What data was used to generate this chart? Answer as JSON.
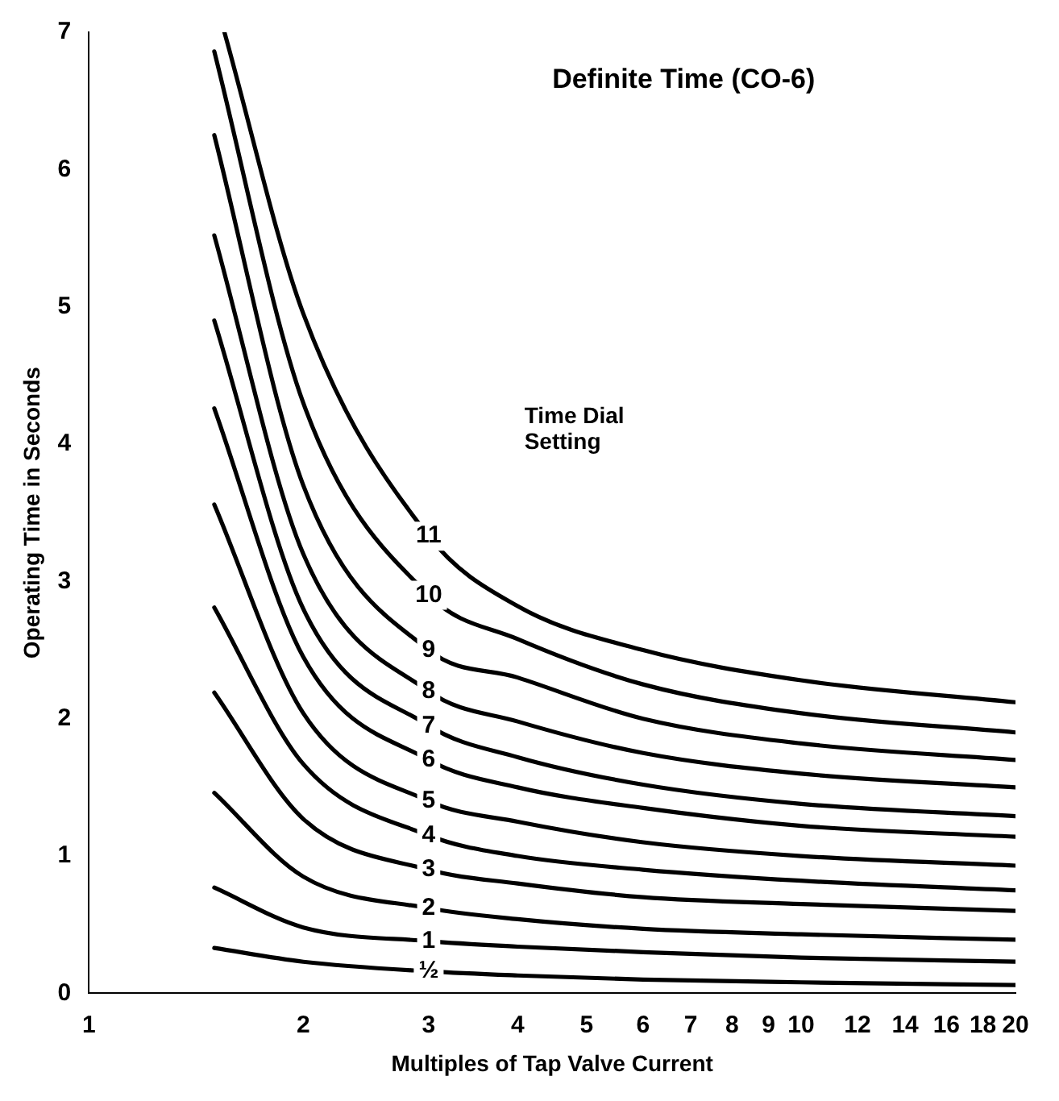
{
  "chart_data": {
    "type": "line",
    "title": "Definite Time (CO-6)",
    "xlabel": "Multiples of Tap Valve Current",
    "ylabel": "Operating Time in Seconds",
    "annotations": [
      "Time Dial Setting"
    ],
    "log": "x",
    "xlim": [
      1,
      20
    ],
    "xticks": [
      1,
      2,
      3,
      4,
      5,
      6,
      7,
      8,
      9,
      10,
      12,
      14,
      16,
      18,
      20
    ],
    "ylim": [
      0,
      7
    ],
    "yticks": [
      0,
      1,
      2,
      3,
      4,
      5,
      6,
      7
    ],
    "grid": false,
    "legend": false,
    "marker": "none",
    "line_style": "solid",
    "series": [
      {
        "name": "½",
        "color": "#000000",
        "x": [
          1.5,
          2,
          3,
          4,
          6,
          10,
          20
        ],
        "values": [
          0.33,
          0.23,
          0.16,
          0.13,
          0.1,
          0.08,
          0.06
        ]
      },
      {
        "name": "1",
        "color": "#000000",
        "x": [
          1.5,
          2,
          3,
          4,
          6,
          10,
          20
        ],
        "values": [
          0.77,
          0.48,
          0.38,
          0.34,
          0.3,
          0.26,
          0.23
        ]
      },
      {
        "name": "2",
        "color": "#000000",
        "x": [
          1.5,
          2,
          3,
          4,
          6,
          10,
          20
        ],
        "values": [
          1.46,
          0.85,
          0.62,
          0.54,
          0.47,
          0.43,
          0.39
        ]
      },
      {
        "name": "3",
        "color": "#000000",
        "x": [
          1.5,
          2,
          3,
          4,
          6,
          10,
          20
        ],
        "values": [
          2.19,
          1.27,
          0.9,
          0.8,
          0.7,
          0.65,
          0.6
        ]
      },
      {
        "name": "4",
        "color": "#000000",
        "x": [
          1.5,
          2,
          3,
          4,
          6,
          10,
          20
        ],
        "values": [
          2.81,
          1.67,
          1.15,
          1.0,
          0.9,
          0.82,
          0.75
        ]
      },
      {
        "name": "5",
        "color": "#000000",
        "x": [
          1.5,
          2,
          3,
          4,
          6,
          10,
          20
        ],
        "values": [
          3.56,
          2.04,
          1.4,
          1.25,
          1.1,
          1.0,
          0.93
        ]
      },
      {
        "name": "6",
        "color": "#000000",
        "x": [
          1.5,
          2,
          3,
          4,
          6,
          10,
          20
        ],
        "values": [
          4.26,
          2.45,
          1.7,
          1.5,
          1.35,
          1.22,
          1.14
        ]
      },
      {
        "name": "7",
        "color": "#000000",
        "x": [
          1.5,
          2,
          3,
          4,
          6,
          10,
          20
        ],
        "values": [
          4.9,
          2.8,
          1.95,
          1.72,
          1.52,
          1.38,
          1.29
        ]
      },
      {
        "name": "8",
        "color": "#000000",
        "x": [
          1.5,
          2,
          3,
          4,
          6,
          10,
          20
        ],
        "values": [
          5.52,
          3.2,
          2.2,
          1.98,
          1.75,
          1.6,
          1.5
        ]
      },
      {
        "name": "9",
        "color": "#000000",
        "x": [
          1.5,
          2,
          3,
          4,
          6,
          10,
          20
        ],
        "values": [
          6.25,
          3.7,
          2.5,
          2.3,
          2.0,
          1.82,
          1.7
        ]
      },
      {
        "name": "10",
        "color": "#000000",
        "x": [
          1.5,
          2,
          3,
          4,
          6,
          10,
          20
        ],
        "values": [
          6.86,
          4.3,
          2.9,
          2.58,
          2.25,
          2.04,
          1.9
        ]
      },
      {
        "name": "11",
        "color": "#000000",
        "x": [
          1.55,
          2,
          3,
          4,
          6,
          10,
          20
        ],
        "values": [
          7.0,
          4.95,
          3.33,
          2.82,
          2.5,
          2.28,
          2.12
        ]
      }
    ]
  }
}
